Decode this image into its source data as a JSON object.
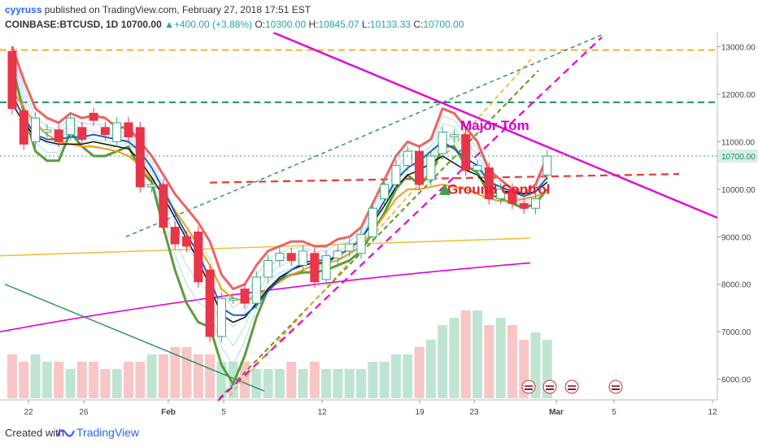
{
  "header": {
    "author": "cyyruss",
    "published": "published on TradingView.com, February 27, 2018 17:51 EST",
    "symbol": "COINBASE:BTCUSD, 1D",
    "last": "10700.00",
    "change": "+400.00 (+3.88%)",
    "open_label": "O:",
    "open": "10300.00",
    "high_label": "H:",
    "high": "10845.07",
    "low_label": "L:",
    "low": "10133.33",
    "close_label": "C:",
    "close": "10700.00"
  },
  "footer": {
    "created_with": "Created with",
    "brand": "TradingView"
  },
  "colors": {
    "up": "#ef5350",
    "down": "#e8354a",
    "green_line": "#5b9b3c",
    "red_line": "#ec6363",
    "blue_line": "#1f5fbf",
    "orange_line": "#f39c12",
    "magenta": "#e400d4",
    "yellow_ma": "#f0c040",
    "teal": "#1d8f6a",
    "price_axis_tag": "#d8f0e4"
  },
  "chart_data": {
    "type": "candlestick",
    "ylim": [
      5600,
      13300
    ],
    "y_ticks": [
      "13000.00",
      "12000.00",
      "11000.00",
      "10000.00",
      "9000.00",
      "8000.00",
      "7000.00",
      "6000.00"
    ],
    "current_price_label": "10700.00",
    "x_ticks": [
      "22",
      "26",
      "Feb",
      "5",
      "12",
      "19",
      "23",
      "Mar",
      "5",
      "12"
    ],
    "annotations": [
      "Major Tom",
      "Ground Control"
    ],
    "candles": [
      {
        "o": 12900,
        "c": 11700
      },
      {
        "o": 11650,
        "c": 10950
      },
      {
        "o": 11000,
        "c": 11500
      },
      {
        "o": 11200,
        "c": 11250
      },
      {
        "o": 11250,
        "c": 11000
      },
      {
        "o": 11150,
        "c": 11500
      },
      {
        "o": 11300,
        "c": 11050
      },
      {
        "o": 11600,
        "c": 11450
      },
      {
        "o": 11300,
        "c": 11150
      },
      {
        "o": 11000,
        "c": 11400
      },
      {
        "o": 11400,
        "c": 11100
      },
      {
        "o": 11300,
        "c": 10050
      },
      {
        "o": 10050,
        "c": 10100
      },
      {
        "o": 10100,
        "c": 9200
      },
      {
        "o": 9200,
        "c": 8850
      },
      {
        "o": 9000,
        "c": 8800
      },
      {
        "o": 9100,
        "c": 8050
      },
      {
        "o": 8300,
        "c": 6900
      },
      {
        "o": 6900,
        "c": 7700
      },
      {
        "o": 7700,
        "c": 7700
      },
      {
        "o": 7900,
        "c": 7600
      },
      {
        "o": 7600,
        "c": 8150
      },
      {
        "o": 8150,
        "c": 8500
      },
      {
        "o": 8500,
        "c": 8650
      },
      {
        "o": 8650,
        "c": 8500
      },
      {
        "o": 8400,
        "c": 8700
      },
      {
        "o": 8650,
        "c": 8050
      },
      {
        "o": 8100,
        "c": 8600
      },
      {
        "o": 8550,
        "c": 8700
      },
      {
        "o": 8700,
        "c": 8850
      },
      {
        "o": 8650,
        "c": 9050
      },
      {
        "o": 9000,
        "c": 9600
      },
      {
        "o": 9800,
        "c": 10100
      },
      {
        "o": 10100,
        "c": 10500
      },
      {
        "o": 10500,
        "c": 10800
      },
      {
        "o": 10800,
        "c": 10100
      },
      {
        "o": 10200,
        "c": 10700
      },
      {
        "o": 10750,
        "c": 11200
      },
      {
        "o": 11100,
        "c": 11150
      },
      {
        "o": 11150,
        "c": 10400
      },
      {
        "o": 10400,
        "c": 10500
      },
      {
        "o": 10450,
        "c": 9800
      },
      {
        "o": 9800,
        "c": 10000
      },
      {
        "o": 10000,
        "c": 9700
      },
      {
        "o": 9700,
        "c": 9600
      },
      {
        "o": 9600,
        "c": 9800
      },
      {
        "o": 10300,
        "c": 10700
      }
    ],
    "volume": [
      6,
      5,
      6,
      5,
      5,
      4,
      5,
      5,
      4,
      4,
      5,
      5,
      6,
      6,
      7,
      7,
      6,
      6,
      5,
      5,
      5,
      4,
      4,
      4,
      5,
      4,
      5,
      4,
      4,
      4,
      4,
      5,
      5,
      6,
      6,
      7,
      8,
      10,
      11,
      12,
      12,
      10,
      11,
      10,
      8,
      9,
      8
    ],
    "lines": {
      "green_band": [
        12600,
        11600,
        10800,
        10600,
        10600,
        11200,
        10900,
        10700,
        10700,
        10800,
        10900,
        10400,
        10150,
        9200,
        8300,
        7600,
        7200,
        7100,
        6300,
        5900,
        6500,
        7300,
        7900,
        8100,
        8200,
        8250,
        8250,
        8300,
        8400,
        8500,
        8700,
        9100,
        9500,
        10000,
        10300,
        10100,
        10300,
        10900,
        10900,
        10500,
        10350,
        9900,
        9800,
        9700,
        9600,
        9700,
        10000
      ],
      "red_band": [
        13000,
        12300,
        11700,
        11500,
        11400,
        11600,
        11500,
        11550,
        11500,
        11300,
        11300,
        11000,
        10700,
        10300,
        9900,
        9600,
        9300,
        8900,
        8200,
        7900,
        8000,
        8400,
        8700,
        8800,
        8900,
        8900,
        8800,
        8800,
        8950,
        9000,
        9200,
        9700,
        10200,
        10700,
        11000,
        10900,
        11050,
        11700,
        11600,
        11300,
        11000,
        10400,
        10200,
        10000,
        9900,
        10100,
        10700
      ],
      "blue_ma": [
        12000,
        11500,
        11150,
        11050,
        11050,
        11100,
        11100,
        11150,
        11100,
        11050,
        11000,
        10800,
        10450,
        10000,
        9500,
        9050,
        8650,
        8100,
        7500,
        7350,
        7350,
        7550,
        7850,
        8100,
        8300,
        8450,
        8500,
        8500,
        8600,
        8750,
        8950,
        9350,
        9750,
        10200,
        10450,
        10600,
        10800,
        11000,
        10850,
        10650,
        10500,
        10150,
        10050,
        9950,
        9850,
        9950,
        10250
      ],
      "black_ma": [
        11800,
        11400,
        11100,
        11000,
        10950,
        10950,
        10950,
        11000,
        10950,
        10900,
        10850,
        10600,
        10250,
        9850,
        9400,
        8950,
        8500,
        7950,
        7350,
        7200,
        7300,
        7600,
        7900,
        8150,
        8300,
        8400,
        8450,
        8450,
        8600,
        8750,
        8950,
        9300,
        9650,
        10050,
        10300,
        10400,
        10550,
        10700,
        10550,
        10400,
        10300,
        10050,
        9950,
        9950,
        9900,
        9950,
        10150
      ],
      "orange_ma": [
        12100,
        11700,
        11400,
        11150,
        11000,
        10950,
        10900,
        10900,
        10850,
        10800,
        10700,
        10500,
        10200,
        9900,
        9550,
        9200,
        8800,
        8400,
        7900,
        7700,
        7650,
        7750,
        7900,
        8050,
        8200,
        8300,
        8400,
        8450,
        8500,
        8650,
        8800,
        9100,
        9450,
        9800,
        10000,
        10000,
        10050,
        10100,
        10050,
        10000,
        9900,
        9800,
        9750,
        9750,
        9800,
        9850,
        9950
      ],
      "yellow_ma_left": 8600,
      "yellow_ma_right": 8970,
      "magenta_ma_left": 7000,
      "magenta_ma_right": 8450
    },
    "trendlines": {
      "top_dashed_gold": 12930,
      "teal_dashed": 11830,
      "red_dashed_left": 10140,
      "red_dashed_right": 10320
    }
  }
}
